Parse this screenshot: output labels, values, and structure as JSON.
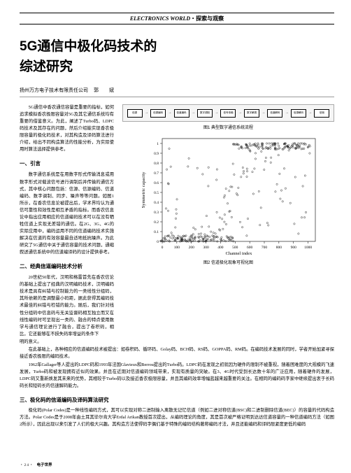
{
  "header": {
    "en": "ELECTRONICS WORLD",
    "sep": "・",
    "cn": "探索与观察"
  },
  "title_l1": "5G通信中极化码技术的",
  "title_l2": "综述研究",
  "affiliation": "扬州万方电子技术有限责任公司",
  "author_name": "郭　斌",
  "left": {
    "intro1": "5G通信中香农通信容量是重要的指标，如何追求模拟香农极限容量对5G及其它通信系统均有重要的借鉴意义。为此，阐述了Turbo码、LDPC码技术及其存在的问题，然后介绍能实现香农极限容量的极化码技术，对其构造及译码算法进行介绍，给出不同构造算法的性能分析，为实际使用时算法选择提供参考。",
    "h1": "一、引言",
    "p1a": "数字通信系统是在用数字形式传输消息或用数字形式对载波信号进行调制后并传输的通信方式，其中核心问题包括：信源、信源编码、信道编码、数字调制、同步、噪声等等问题。如图1所示，在香农信息论被提出后，学术界均认为通信可靠性和效性是相互矛盾的指标。而香农信息论中指出应用相应的信道编码技术可以在没有牺牲信道上实现无差错的通信。在2G、3G、4G的实际应用中，编码运用不同的信道编码技术实施解决在信道的有效容量最自适地抵抗噪声。为此研究了5G通信中关于通信容量的技术问题，通缩叙述通信系统中的信道编译码的设计提供参考。",
    "h2": "二、经典信道编码技术分析",
    "p2a": "20世纪50年代，汉明和格雷首先在香农信论的基础上提出了经典的汉明编码技术，汉明编码技术是具有纠错与控制能力的一类线性分组码，其所依赖的是调整最小码距，据此获得其编码技术最佳的纠错与检错的能力。随后，我们针对线性分组码中信息码与无关监督码相互独立而又在线性编码时可呈现出一类的、融合的特点使用数学与通信理论进行了融合，提出了卷积码，相比，它还能够在不损失码率增益的条件下",
    "p2b_end": ""
  },
  "fig1": {
    "caption": "图1 典型数字通信系统流程",
    "boxes": [
      "信源",
      "信源编码",
      "信道编码",
      "数字调制",
      "信号传输",
      "数字解调",
      "信道解码",
      "信源解码",
      "信宿"
    ]
  },
  "fig2": {
    "caption": "图2 信道极化现象可视化图",
    "xlabel": "Channel index",
    "ylabel": "Symmetric capacity",
    "xlim": [
      0,
      1050
    ],
    "ylim": [
      0,
      1.05
    ],
    "xticks": [
      0,
      100,
      200,
      300,
      400,
      500,
      600,
      700,
      800,
      900,
      1000
    ],
    "yticks": [
      0,
      0.1,
      0.2,
      0.3,
      0.4,
      0.5,
      0.6,
      0.7,
      0.8,
      0.9,
      1
    ],
    "bg": "#ffffff",
    "axis_color": "#000000",
    "marker_color": "#000000",
    "marker_size": 1.2
  },
  "lower": {
    "p_cont": "明的意义。",
    "p3": "在此基础上，各种相应的信道编码技术被提出：如卷积码、循环码、Golay码、BCH码、RS码、GOPPA码、RM码。在编码技术发展的同时，学者开始加紧寻探接近香农极限的编码技术。",
    "p4": "1962年Gallager等人提出的LDPC码和1993年法国Glavieux和Berrou提出的Turbo码。LDPC码在发现之初就因为硬件的限制不被重视，随着困难度的大规模的飞速发展，Turbo码和被发现拥有近似的效果。并且在近期对信道编码领域带来，实现有质量的突破。在3、4G时代受到长达数十年的广泛应用，随着硬件的发展，LDPC码又重新焕发其未来的优势，其相较于Turbo码以及接近香农极限容量，并且其编码效率增幅蓝越来越重要的关注。在相同的编码码字家中继续提出衷于长码码长和短码长的信速解码能力。",
    "h3": "三、极化码的信道编码及译码算法研究",
    "p5": "极化码(Polar Codes)是一种线性编码方式，其可以实现对称二进制输入离散无记忆信道（例如二进对称信道(BSC)和二进制删除信道(BEC)）的容量的代码构造方法。Polar Codes是于2008年由土耳其毕尔肯大学Erdal Arikan教授首次提出，从编码理论的角度，其是首次被严格证明到达达信道容量的一种信道编码方法（如图2所示），因此出现以来引发了人们的极大兴趣。其构造方法使得码字偶们基于特殊的编码结构著称编码才法，并且还能编码和译码限紧度更低的编码"
  },
  "footer": {
    "page": "・24・",
    "mag": "电子世界"
  }
}
